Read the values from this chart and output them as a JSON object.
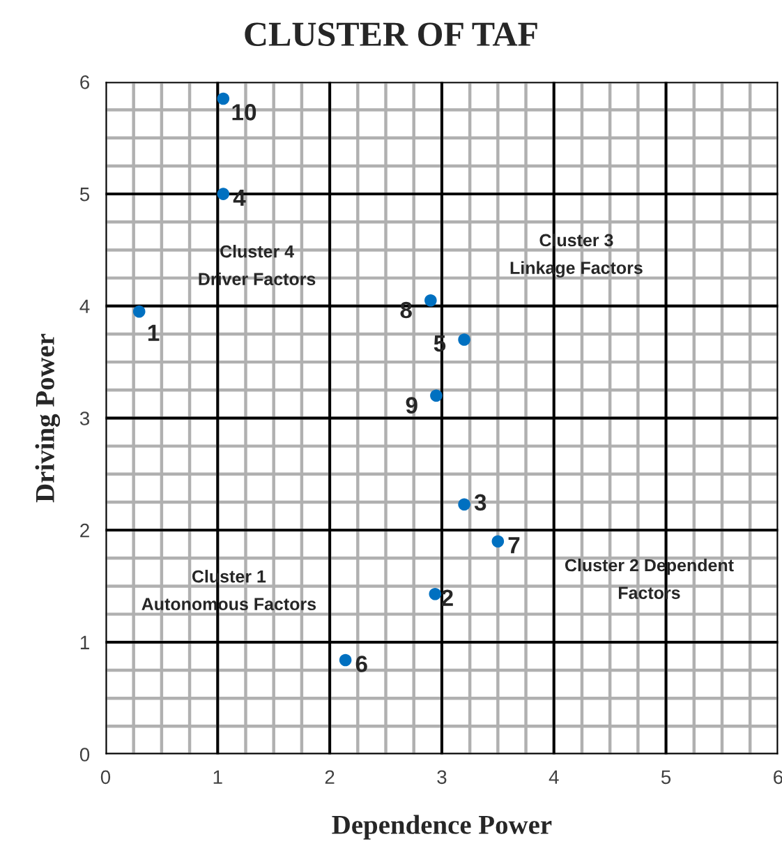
{
  "chart_data": {
    "type": "scatter",
    "title": "CLUSTER OF TAF",
    "xlabel": "Dependence Power",
    "ylabel": "Driving Power",
    "series": [
      {
        "color": "#0070c0",
        "x": [
          0.3,
          2.94,
          3.2,
          1.05,
          3.2,
          2.14,
          3.5,
          2.9,
          2.95,
          1.05
        ],
        "values": [
          3.95,
          1.43,
          2.23,
          5.0,
          3.7,
          0.84,
          1.9,
          4.05,
          3.2,
          5.85
        ]
      }
    ],
    "annotations": [
      {
        "text": "1",
        "x": 0.3,
        "y": 3.95
      },
      {
        "text": "2",
        "x": 2.94,
        "y": 1.43
      },
      {
        "text": "3",
        "x": 3.2,
        "y": 2.23
      },
      {
        "text": "4",
        "x": 1.05,
        "y": 5.0
      },
      {
        "text": "5",
        "x": 3.2,
        "y": 3.7
      },
      {
        "text": "6",
        "x": 2.14,
        "y": 0.84
      },
      {
        "text": "7",
        "x": 3.5,
        "y": 1.9
      },
      {
        "text": "8",
        "x": 2.9,
        "y": 4.05
      },
      {
        "text": "9",
        "x": 2.95,
        "y": 3.2
      },
      {
        "text": "10",
        "x": 1.05,
        "y": 5.85
      },
      "Cluster 4\nDriver Factors",
      "Cluster 3\nLinkage Factors",
      "Cluster 1\nAutonomous Factors",
      "Cluster 2 Dependent\nFactors"
    ],
    "xlim": [
      0,
      6
    ],
    "ylim": [
      0,
      6
    ],
    "xticks": [
      0,
      1,
      2,
      3,
      4,
      5,
      6
    ],
    "yticks": [
      0,
      1,
      2,
      3,
      4,
      5,
      6
    ],
    "grid": true,
    "marker": "circle",
    "legend": false
  }
}
